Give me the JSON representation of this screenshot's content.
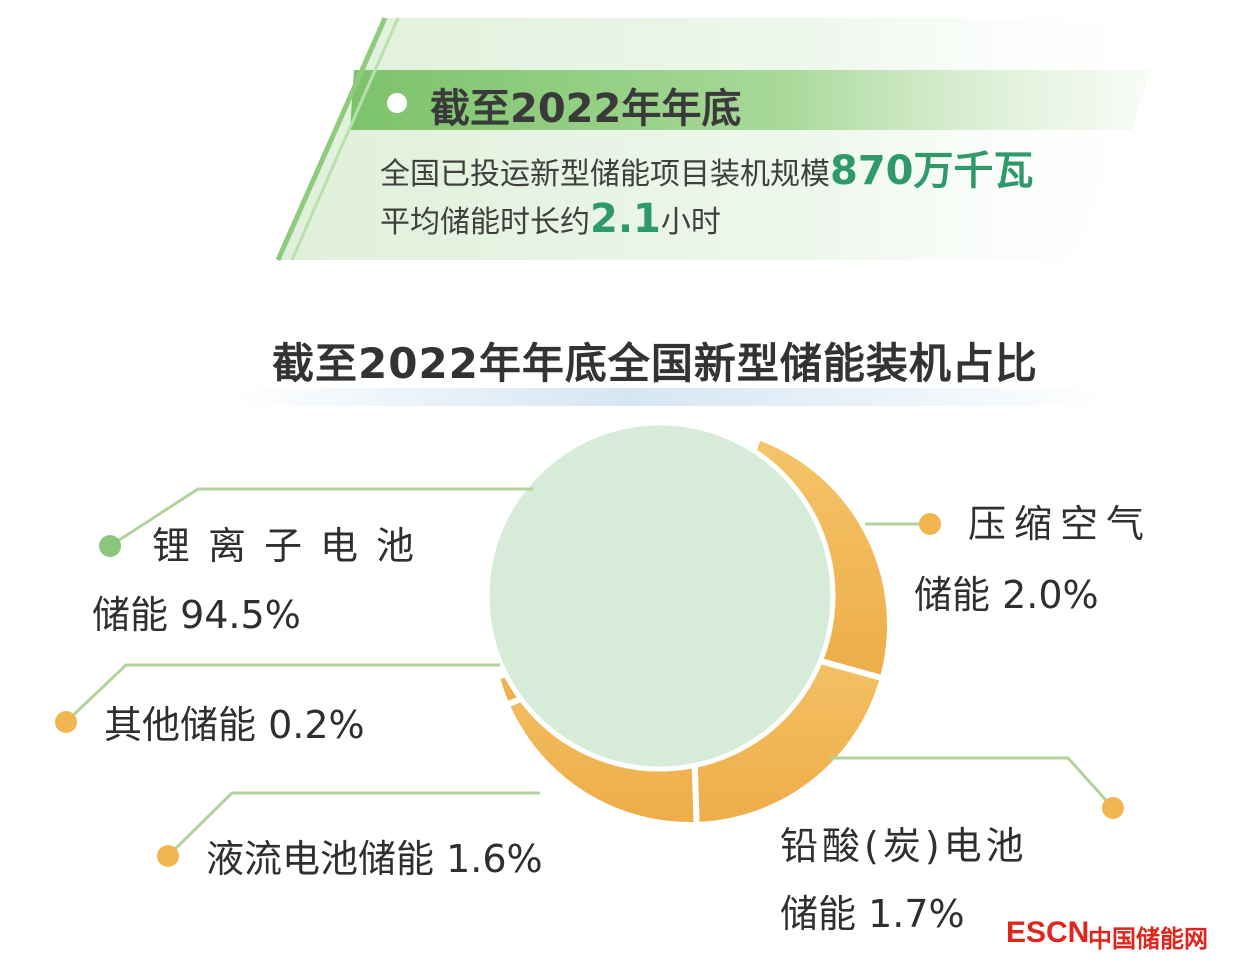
{
  "banner": {
    "heading": "截至2022年年底",
    "line1_text": "全国已投运新型储能项目装机规模",
    "line1_value": "870万千瓦",
    "line2_text": "平均储能时长约",
    "line2_value": "2.1",
    "line2_unit": "小时"
  },
  "chart_data": {
    "type": "pie",
    "title": "截至2022年年底全国新型储能装机占比",
    "slices": [
      {
        "name": "锂离子电池储能",
        "value": 94.5,
        "color": "#d6ecd9",
        "label_line1": "锂离子电池",
        "label_line2": "储能 94.5%"
      },
      {
        "name": "压缩空气储能",
        "value": 2.0,
        "color": "#f2b650",
        "label_line1": "压缩空气",
        "label_line2": "储能 2.0%"
      },
      {
        "name": "铅酸（炭）电池储能",
        "value": 1.7,
        "color": "#f2b650",
        "label_line1": "铅酸(炭)电池",
        "label_line2": "储能 1.7%"
      },
      {
        "name": "液流电池储能",
        "value": 1.6,
        "color": "#f2b650",
        "label_line1": "液流电池储能 1.6%"
      },
      {
        "name": "其他储能",
        "value": 0.2,
        "color": "#f2b650",
        "label_line1": "其他储能 0.2%"
      }
    ]
  },
  "watermark": {
    "brand": "ESCN",
    "name": "中国储能网"
  },
  "colors": {
    "green": "#8bc77a",
    "orange": "#f2b650",
    "pie_main": "#d6ecd9",
    "highlight": "#2e9a6a",
    "watermark": "#e0251c"
  }
}
